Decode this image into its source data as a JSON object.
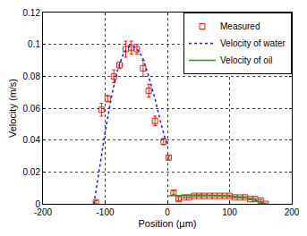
{
  "chart_data": {
    "type": "scatter",
    "x_label": "Position (µm)",
    "y_label": "Velocity (m/s)",
    "xlim": [
      -200,
      200
    ],
    "xticks": [
      -200,
      -100,
      0,
      100,
      200
    ],
    "ylim": [
      0,
      0.12
    ],
    "yticks": [
      0,
      0.02,
      0.04,
      0.06,
      0.08,
      0.1,
      0.12
    ],
    "grid": true,
    "legend": "top-right",
    "series": [
      {
        "name": "Measured",
        "type": "scatter",
        "color": "#e8200c",
        "marker": "square-open",
        "x": [
          -115,
          -106,
          -96,
          -86,
          -77,
          -67,
          -58,
          -49,
          -39,
          -30,
          -20,
          -6,
          2,
          10,
          18,
          27,
          35,
          43,
          51,
          59,
          68,
          76,
          84,
          92,
          100,
          108,
          117,
          125,
          133,
          141,
          150,
          158
        ],
        "values": [
          0.001,
          0.059,
          0.066,
          0.08,
          0.087,
          0.097,
          0.098,
          0.097,
          0.085,
          0.071,
          0.052,
          0.039,
          0.029,
          0.007,
          0.003,
          0.004,
          0.004,
          0.005,
          0.005,
          0.005,
          0.005,
          0.005,
          0.005,
          0.005,
          0.005,
          0.004,
          0.004,
          0.004,
          0.003,
          0.003,
          0.002,
          0.0
        ],
        "errors": [
          0.001,
          0.004,
          0.002,
          0.004,
          0.002,
          0.005,
          0.004,
          0.003,
          0.005,
          0.004,
          0.003,
          0.002,
          0.001,
          0.001,
          0.001,
          0.0005,
          0.0005,
          0.0005,
          0.0005,
          0.0005,
          0.0005,
          0.0005,
          0.0005,
          0.0005,
          0.0005,
          0.0005,
          0.0005,
          0.0005,
          0.0005,
          0.0005,
          0.0005,
          0.0005
        ]
      },
      {
        "name": "Velocity of water",
        "type": "line",
        "color": "#1a1ae6",
        "line_style": "dot",
        "x": [
          -118,
          -110,
          -100,
          -90,
          -80,
          -70,
          -60,
          -50,
          -40,
          -30,
          -20,
          -10,
          0
        ],
        "values": [
          0,
          0.02,
          0.045,
          0.067,
          0.084,
          0.095,
          0.099,
          0.098,
          0.092,
          0.08,
          0.066,
          0.05,
          0.036
        ]
      },
      {
        "name": "Velocity of oil",
        "type": "line",
        "color": "#1f9a1f",
        "line_style": "solid",
        "x": [
          2,
          50,
          100,
          130,
          158
        ],
        "values": [
          0.005,
          0.0055,
          0.005,
          0.0035,
          0
        ]
      }
    ]
  }
}
